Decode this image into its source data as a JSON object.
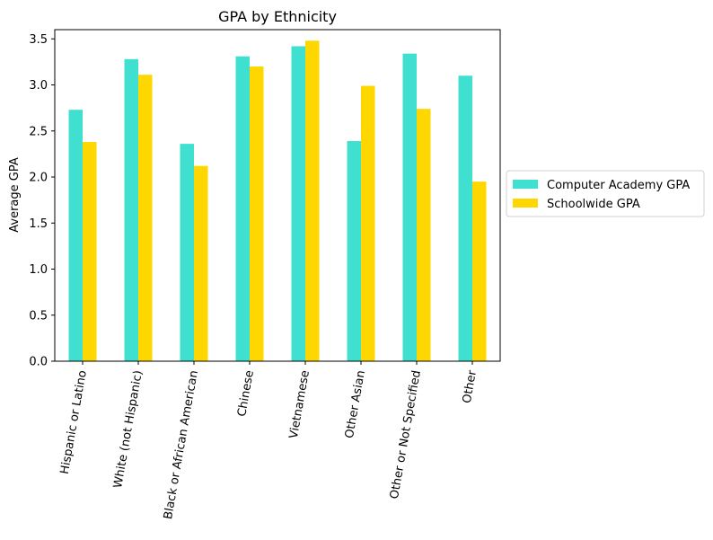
{
  "chart_data": {
    "type": "bar",
    "title": "GPA by Ethnicity",
    "xlabel": "",
    "ylabel": "Average GPA",
    "ylim": [
      0,
      3.6
    ],
    "yticks": [
      "0.0",
      "0.5",
      "1.0",
      "1.5",
      "2.0",
      "2.5",
      "3.0",
      "3.5"
    ],
    "ytick_values": [
      0,
      0.5,
      1.0,
      1.5,
      2.0,
      2.5,
      3.0,
      3.5
    ],
    "categories": [
      "Hispanic or Latino",
      "White (not Hispanic)",
      "Black or African American",
      "Chinese",
      "Vietnamese",
      "Other Asian",
      "Other or Not Specified",
      "Other"
    ],
    "series": [
      {
        "name": "Computer Academy GPA",
        "color": "#40E0D0",
        "values": [
          2.73,
          3.28,
          2.36,
          3.31,
          3.42,
          2.39,
          3.34,
          3.1
        ]
      },
      {
        "name": "Schoolwide GPA",
        "color": "#FFD700",
        "values": [
          2.38,
          3.11,
          2.12,
          3.2,
          3.48,
          2.99,
          2.74,
          1.95
        ]
      }
    ],
    "grid": false,
    "legend_position": "center-right outside"
  }
}
